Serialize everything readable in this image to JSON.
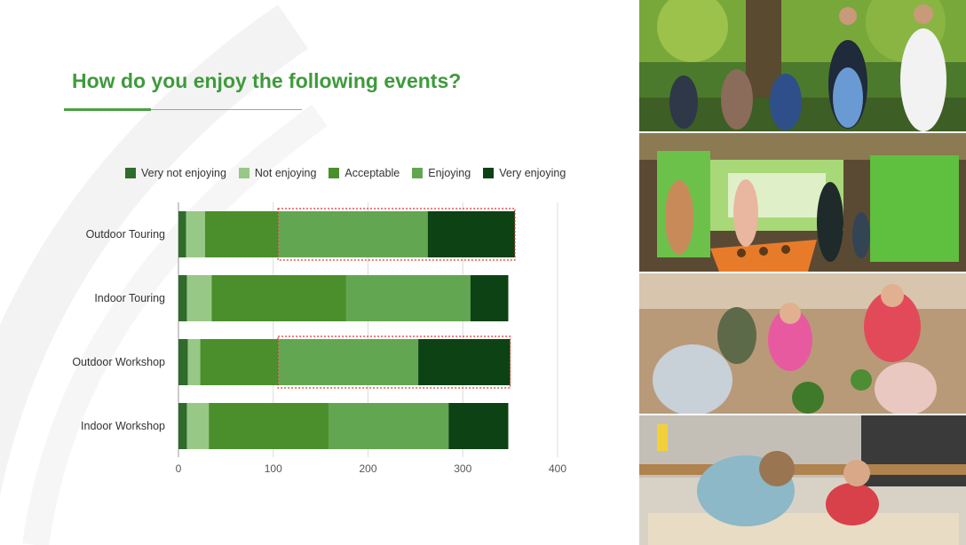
{
  "slide": {
    "title": "How do you enjoy the following events?"
  },
  "colors": {
    "title": "#3f9a3c",
    "very_not_enjoying": "#2f6b2a",
    "not_enjoying": "#98c886",
    "acceptable": "#4a8f2b",
    "enjoying": "#63a651",
    "very_enjoying": "#0d4214",
    "highlight": "#d9342b"
  },
  "chart_data": {
    "type": "bar",
    "orientation": "horizontal",
    "stacked": true,
    "title": "",
    "xlabel": "",
    "ylabel": "",
    "xlim": [
      0,
      400
    ],
    "x_ticks": [
      0,
      100,
      200,
      300,
      400
    ],
    "grid": true,
    "legend_position": "top",
    "categories": [
      "Outdoor Touring",
      "Indoor Touring",
      "Outdoor Workshop",
      "Indoor Workshop"
    ],
    "series": [
      {
        "name": "Very not enjoying",
        "values": [
          8,
          9,
          10,
          9
        ]
      },
      {
        "name": "Not enjoying",
        "values": [
          20,
          26,
          13,
          23
        ]
      },
      {
        "name": "Acceptable",
        "values": [
          77,
          142,
          82,
          127
        ]
      },
      {
        "name": "Enjoying",
        "values": [
          158,
          131,
          148,
          126
        ]
      },
      {
        "name": "Very enjoying",
        "values": [
          92,
          40,
          97,
          63
        ]
      }
    ],
    "highlights": [
      {
        "category": "Outdoor Touring",
        "from": 105,
        "to": 355
      },
      {
        "category": "Outdoor Workshop",
        "from": 105,
        "to": 350
      }
    ]
  },
  "photos": [
    {
      "name": "photo-forest-tour",
      "description": "group of children on an outdoor forest tour with a guide"
    },
    {
      "name": "photo-indoor-exhibit",
      "description": "visitors at an indoor interactive exhibit"
    },
    {
      "name": "photo-garden-workshop",
      "description": "children planting in an outdoor garden workshop"
    },
    {
      "name": "photo-woodshop-workshop",
      "description": "adult and child in an indoor woodshop workshop"
    }
  ]
}
